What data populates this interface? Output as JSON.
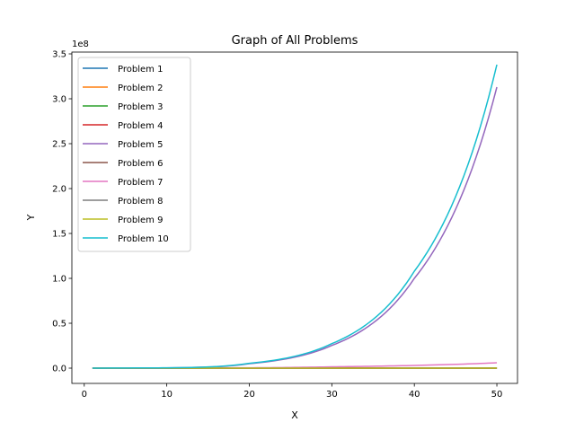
{
  "chart_data": {
    "type": "line",
    "title": "Graph of All Problems",
    "xlabel": "X",
    "ylabel": "Y",
    "y_offset_label": "1e8",
    "xlim": [
      -1.5,
      52.5
    ],
    "ylim": [
      -0.17,
      3.52
    ],
    "x_ticks": [
      0,
      10,
      20,
      30,
      40,
      50
    ],
    "y_ticks": [
      0.0,
      0.5,
      1.0,
      1.5,
      2.0,
      2.5,
      3.0,
      3.5
    ],
    "y_tick_labels": [
      "0.0",
      "0.5",
      "1.0",
      "1.5",
      "2.0",
      "2.5",
      "3.0",
      "3.5"
    ],
    "legend_position": "upper-left",
    "grid": false,
    "x_range": [
      1,
      50
    ],
    "series": [
      {
        "name": "Problem 1",
        "color": "#1f77b4",
        "values_at_x": {
          "1": 0.0,
          "50": 0.0
        }
      },
      {
        "name": "Problem 2",
        "color": "#ff7f0e",
        "values_at_x": {
          "1": 0.0,
          "50": 0.0
        }
      },
      {
        "name": "Problem 3",
        "color": "#2ca02c",
        "values_at_x": {
          "1": 0.0,
          "50": 0.0
        }
      },
      {
        "name": "Problem 4",
        "color": "#d62728",
        "values_at_x": {
          "1": 0.0,
          "50": 0.0
        }
      },
      {
        "name": "Problem 5",
        "color": "#9467bd",
        "values_at_x": {
          "1": 0.0,
          "10": 0.0031,
          "20": 0.05,
          "30": 0.253,
          "40": 1.0,
          "50": 3.13
        }
      },
      {
        "name": "Problem 6",
        "color": "#8c564b",
        "values_at_x": {
          "1": 0.0,
          "50": 0.0
        }
      },
      {
        "name": "Problem 7",
        "color": "#e377c2",
        "values_at_x": {
          "1": 0.0,
          "20": 0.004,
          "30": 0.015,
          "40": 0.03,
          "50": 0.06
        }
      },
      {
        "name": "Problem 8",
        "color": "#7f7f7f",
        "values_at_x": {
          "1": 0.0,
          "50": 0.0
        }
      },
      {
        "name": "Problem 9",
        "color": "#bcbd22",
        "values_at_x": {
          "1": 0.0,
          "50": 0.0
        }
      },
      {
        "name": "Problem 10",
        "color": "#17becf",
        "values_at_x": {
          "1": 0.0,
          "10": 0.0034,
          "20": 0.054,
          "30": 0.273,
          "40": 1.08,
          "50": 3.38
        }
      }
    ]
  }
}
